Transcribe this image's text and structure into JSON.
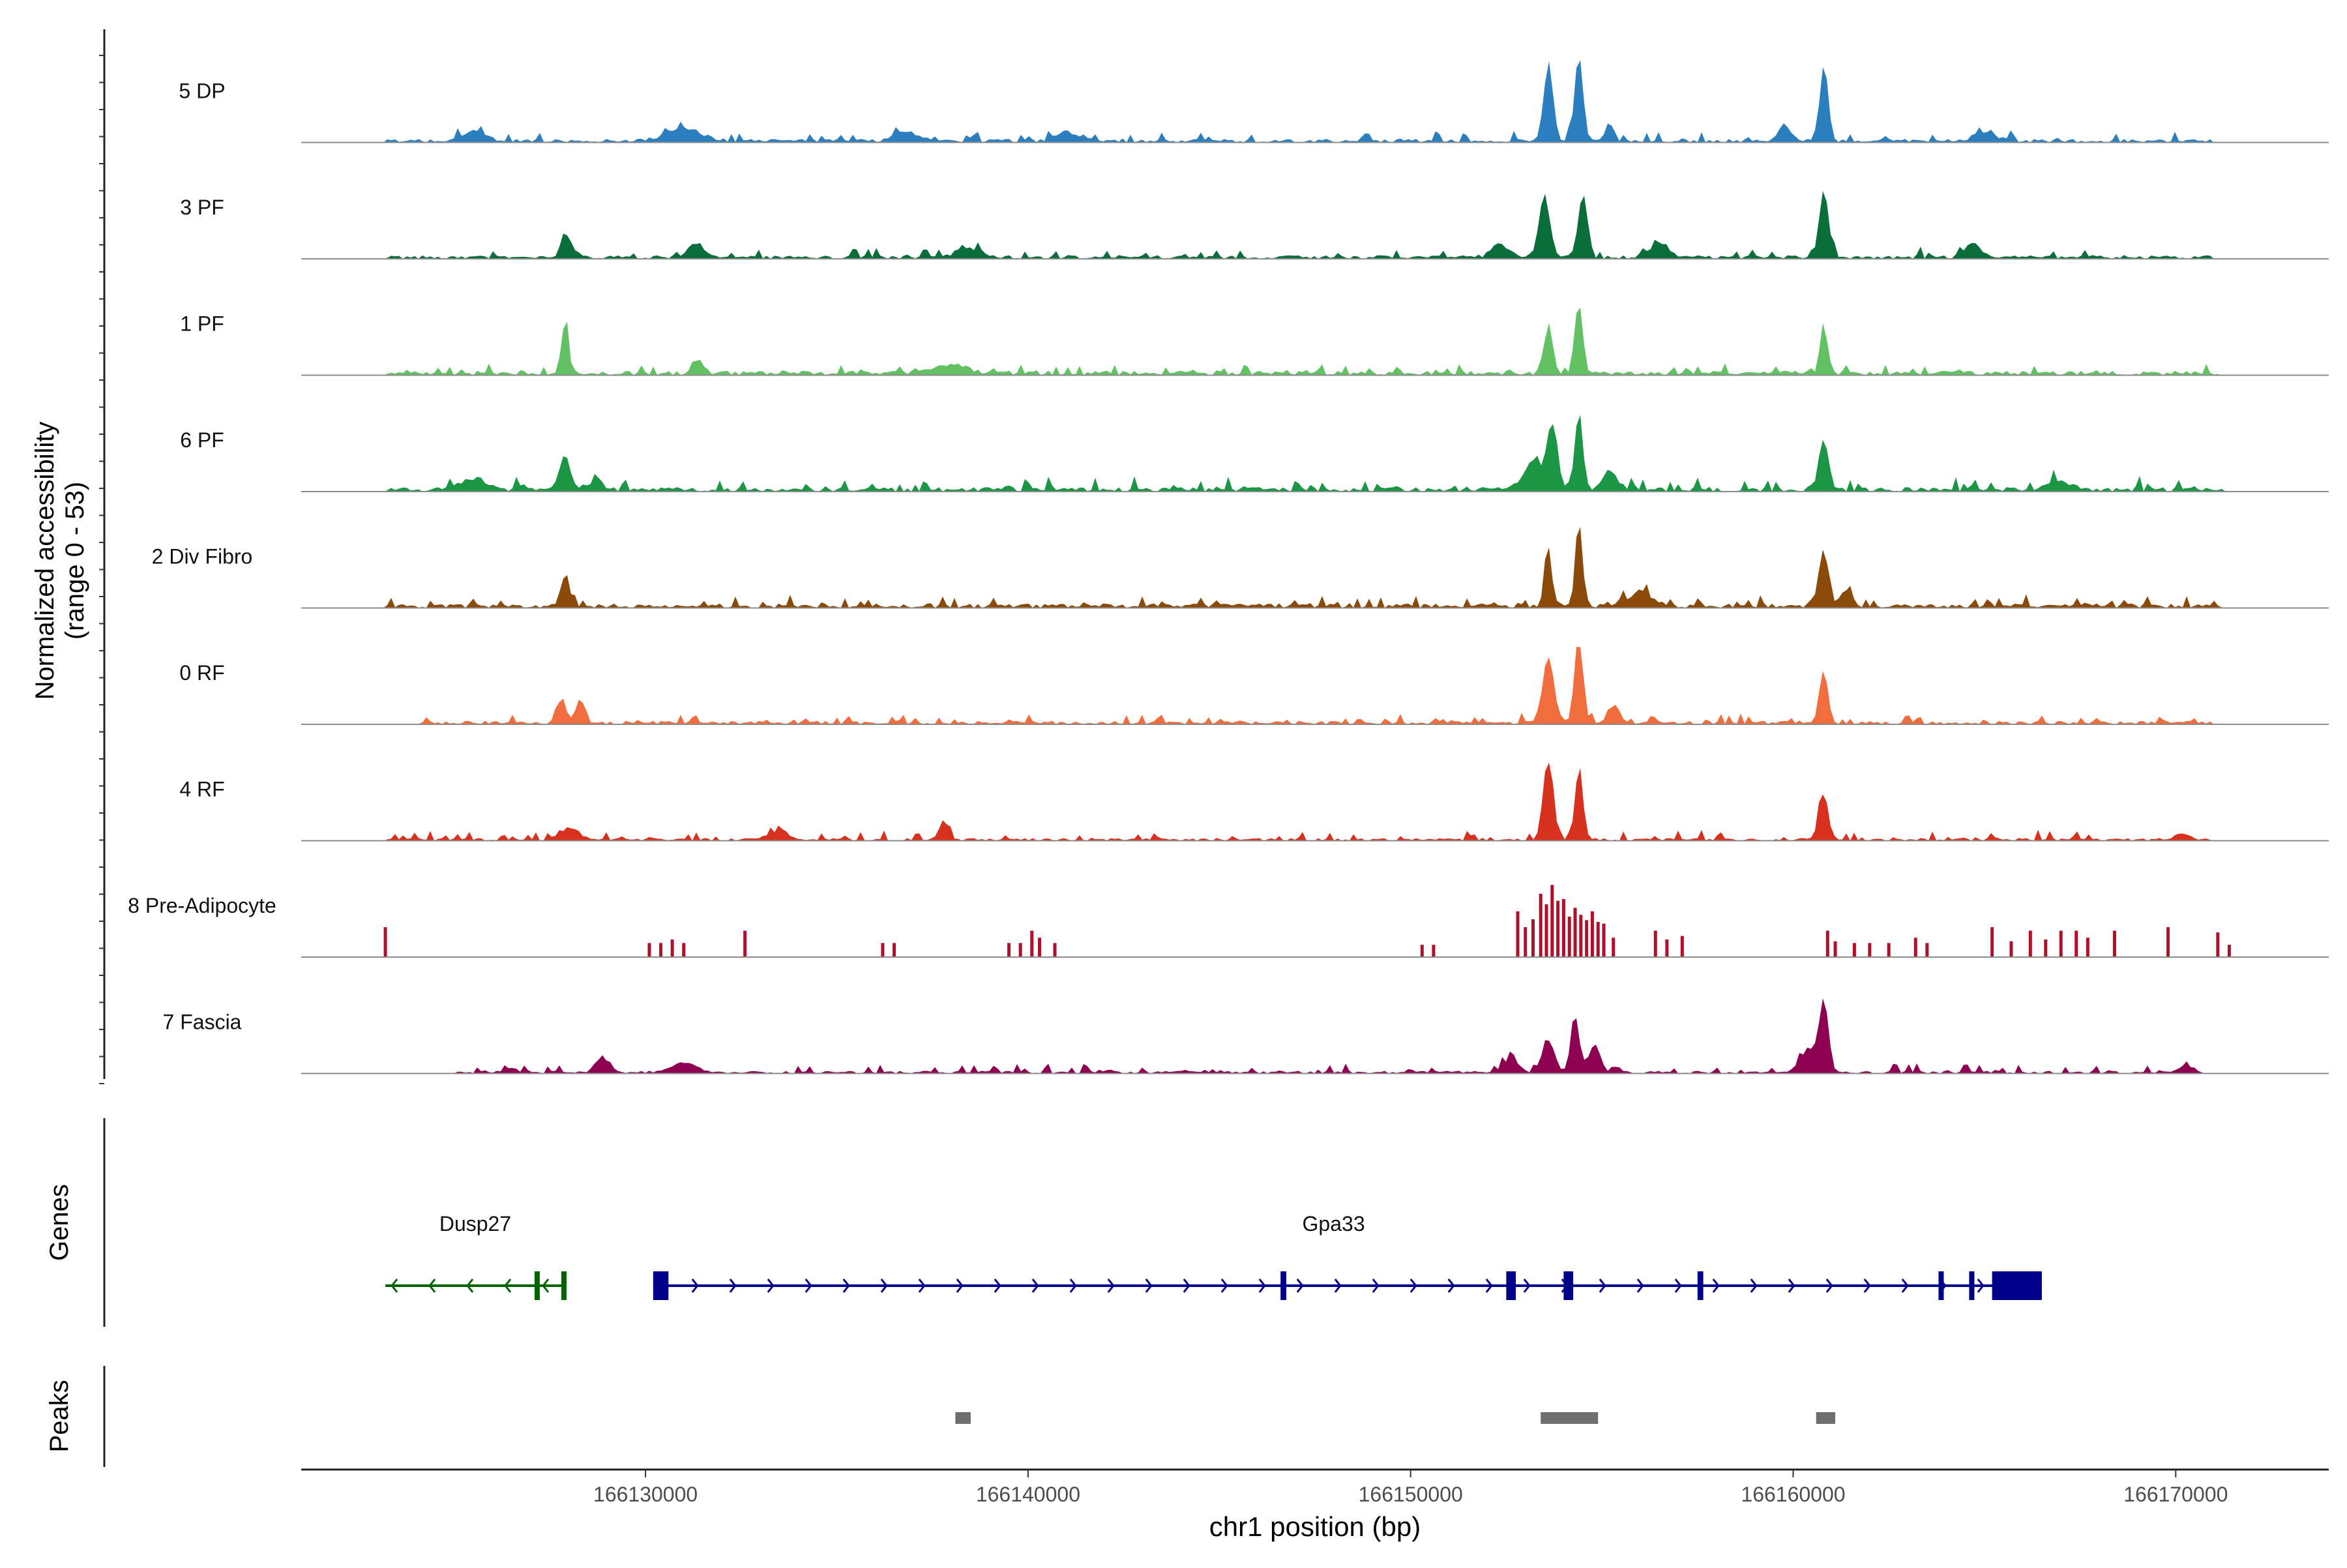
{
  "chart_data": {
    "type": "area",
    "title": "",
    "ylabel_lines": [
      "Normalized accessibility",
      "(range 0 - 53)"
    ],
    "xlabel": "chr1 position (bp)",
    "xlim": [
      166121000,
      166174000
    ],
    "x_ticks": [
      166130000,
      166140000,
      166150000,
      166160000,
      166170000
    ],
    "x_tick_labels": [
      "166130000",
      "166140000",
      "166150000",
      "166160000",
      "166170000"
    ],
    "genes_label": "Genes",
    "peaks_label": "Peaks",
    "tracks": [
      {
        "name": "5 DP",
        "color": "#2b7fbf",
        "bars": false,
        "baseline": 0.04,
        "noise_level": 0.1,
        "noise_start": 166123200,
        "noise_end": 166171000,
        "bumps": [
          [
            166125500,
            0.12,
            300
          ],
          [
            166131000,
            0.16,
            450
          ],
          [
            166136800,
            0.12,
            300
          ],
          [
            166141000,
            0.1,
            300
          ],
          [
            166153600,
            1.0,
            120
          ],
          [
            166154400,
            1.0,
            110
          ],
          [
            166155200,
            0.24,
            100
          ],
          [
            166160800,
            0.92,
            110
          ],
          [
            166159800,
            0.16,
            200
          ],
          [
            166165000,
            0.1,
            300
          ]
        ]
      },
      {
        "name": "3 PF",
        "color": "#0a6e3a",
        "bars": false,
        "baseline": 0.04,
        "noise_level": 0.1,
        "noise_start": 166123200,
        "noise_end": 166171000,
        "bumps": [
          [
            166127900,
            0.32,
            110
          ],
          [
            166131300,
            0.18,
            200
          ],
          [
            166138500,
            0.12,
            300
          ],
          [
            166152300,
            0.16,
            200
          ],
          [
            166153500,
            0.77,
            140
          ],
          [
            166154500,
            0.74,
            120
          ],
          [
            166156500,
            0.18,
            250
          ],
          [
            166160800,
            0.86,
            120
          ],
          [
            166164700,
            0.16,
            200
          ]
        ]
      },
      {
        "name": "1 PF",
        "color": "#62c263",
        "bars": false,
        "baseline": 0.05,
        "noise_level": 0.09,
        "noise_start": 166123200,
        "noise_end": 166171200,
        "bumps": [
          [
            166127900,
            0.63,
            90
          ],
          [
            166131400,
            0.16,
            120
          ],
          [
            166138000,
            0.1,
            400
          ],
          [
            166153600,
            0.55,
            120
          ],
          [
            166154400,
            0.9,
            100
          ],
          [
            166160800,
            0.57,
            100
          ]
        ]
      },
      {
        "name": "6 PF",
        "color": "#1a9645",
        "bars": false,
        "baseline": 0.05,
        "noise_level": 0.13,
        "noise_start": 166123200,
        "noise_end": 166171300,
        "bumps": [
          [
            166125500,
            0.14,
            300
          ],
          [
            166127900,
            0.42,
            140
          ],
          [
            166128700,
            0.18,
            120
          ],
          [
            166153200,
            0.34,
            250
          ],
          [
            166153700,
            0.82,
            130
          ],
          [
            166154400,
            1.0,
            100
          ],
          [
            166155200,
            0.22,
            200
          ],
          [
            166160800,
            0.66,
            120
          ],
          [
            166167000,
            0.1,
            300
          ]
        ]
      },
      {
        "name": "2 Div Fibro",
        "color": "#8b4a0a",
        "bars": false,
        "baseline": 0.05,
        "noise_level": 0.11,
        "noise_start": 166123200,
        "noise_end": 166171300,
        "bumps": [
          [
            166127900,
            0.39,
            110
          ],
          [
            166153600,
            0.63,
            100
          ],
          [
            166154400,
            1.1,
            90
          ],
          [
            166156000,
            0.18,
            300
          ],
          [
            166160800,
            0.67,
            130
          ],
          [
            166161400,
            0.2,
            150
          ]
        ]
      },
      {
        "name": "0 RF",
        "color": "#f26d3d",
        "bars": false,
        "baseline": 0.04,
        "noise_level": 0.09,
        "noise_start": 166124000,
        "noise_end": 166171000,
        "bumps": [
          [
            166127800,
            0.28,
            110
          ],
          [
            166128300,
            0.3,
            110
          ],
          [
            166153600,
            0.75,
            150
          ],
          [
            166154400,
            1.07,
            110
          ],
          [
            166155300,
            0.22,
            150
          ],
          [
            166160800,
            0.64,
            110
          ]
        ]
      },
      {
        "name": "4 RF",
        "color": "#d7301f",
        "bars": false,
        "baseline": 0.03,
        "noise_level": 0.1,
        "noise_start": 166123200,
        "noise_end": 166171000,
        "bumps": [
          [
            166128000,
            0.14,
            250
          ],
          [
            166133500,
            0.12,
            250
          ],
          [
            166137800,
            0.22,
            120
          ],
          [
            166153600,
            1.0,
            130
          ],
          [
            166154400,
            0.91,
            100
          ],
          [
            166160800,
            0.56,
            120
          ],
          [
            166170200,
            0.08,
            200
          ]
        ]
      },
      {
        "name": "8 Pre-Adipocyte",
        "color": "#b0102b",
        "bars": true,
        "baseline": 0.0,
        "noise_level": 0.0,
        "noise_start": 166123200,
        "noise_end": 166171500,
        "bumps": [
          [
            166123200,
            0.34,
            0
          ],
          [
            166130100,
            0.16,
            0
          ],
          [
            166130400,
            0.16,
            0
          ],
          [
            166130700,
            0.2,
            0
          ],
          [
            166131000,
            0.16,
            0
          ],
          [
            166132600,
            0.3,
            0
          ],
          [
            166136200,
            0.16,
            0
          ],
          [
            166136500,
            0.16,
            0
          ],
          [
            166139500,
            0.16,
            0
          ],
          [
            166139800,
            0.16,
            0
          ],
          [
            166140100,
            0.3,
            0
          ],
          [
            166140300,
            0.22,
            0
          ],
          [
            166140700,
            0.16,
            0
          ],
          [
            166150300,
            0.14,
            0
          ],
          [
            166150600,
            0.14,
            0
          ],
          [
            166152800,
            0.52,
            0
          ],
          [
            166153000,
            0.34,
            0
          ],
          [
            166153200,
            0.43,
            0
          ],
          [
            166153400,
            0.72,
            0
          ],
          [
            166153550,
            0.6,
            0
          ],
          [
            166153700,
            0.82,
            0
          ],
          [
            166153850,
            0.64,
            0
          ],
          [
            166154000,
            0.66,
            0
          ],
          [
            166154150,
            0.46,
            0
          ],
          [
            166154300,
            0.56,
            0
          ],
          [
            166154450,
            0.48,
            0
          ],
          [
            166154600,
            0.42,
            0
          ],
          [
            166154750,
            0.52,
            0
          ],
          [
            166154900,
            0.4,
            0
          ],
          [
            166155050,
            0.38,
            0
          ],
          [
            166155300,
            0.22,
            0
          ],
          [
            166156400,
            0.3,
            0
          ],
          [
            166156700,
            0.2,
            0
          ],
          [
            166157100,
            0.24,
            0
          ],
          [
            166160900,
            0.3,
            0
          ],
          [
            166161100,
            0.18,
            0
          ],
          [
            166161600,
            0.16,
            0
          ],
          [
            166162000,
            0.16,
            0
          ],
          [
            166162500,
            0.16,
            0
          ],
          [
            166163200,
            0.22,
            0
          ],
          [
            166163500,
            0.16,
            0
          ],
          [
            166165200,
            0.34,
            0
          ],
          [
            166165700,
            0.18,
            0
          ],
          [
            166166200,
            0.3,
            0
          ],
          [
            166166600,
            0.2,
            0
          ],
          [
            166167000,
            0.3,
            0
          ],
          [
            166167400,
            0.3,
            0
          ],
          [
            166167700,
            0.22,
            0
          ],
          [
            166168400,
            0.3,
            0
          ],
          [
            166169800,
            0.34,
            0
          ],
          [
            166171100,
            0.28,
            0
          ],
          [
            166171400,
            0.14,
            0
          ]
        ]
      },
      {
        "name": "7 Fascia",
        "color": "#8e0152",
        "bars": false,
        "baseline": 0.03,
        "noise_level": 0.1,
        "noise_start": 166125000,
        "noise_end": 166170500,
        "bumps": [
          [
            166128900,
            0.17,
            200
          ],
          [
            166131000,
            0.12,
            300
          ],
          [
            166152600,
            0.16,
            200
          ],
          [
            166153600,
            0.43,
            150
          ],
          [
            166154300,
            0.72,
            110
          ],
          [
            166154800,
            0.35,
            150
          ],
          [
            166160800,
            0.86,
            120
          ],
          [
            166160400,
            0.3,
            200
          ],
          [
            166170300,
            0.08,
            200
          ]
        ]
      }
    ],
    "genes": [
      {
        "name": "Dusp27",
        "color": "#006400",
        "strand": "-",
        "start": 166123200,
        "end": 166127900,
        "exons": [
          [
            166127100,
            166127200
          ],
          [
            166127800,
            166127900
          ]
        ]
      },
      {
        "name": "Gpa33",
        "color": "#00008b",
        "strand": "+",
        "start": 166130200,
        "end": 166166500,
        "exons": [
          [
            166130200,
            166130600
          ],
          [
            166146600,
            166146750
          ],
          [
            166152500,
            166152750
          ],
          [
            166154000,
            166154250
          ],
          [
            166157500,
            166157650
          ],
          [
            166163800,
            166163900
          ],
          [
            166164600,
            166164700
          ],
          [
            166165200,
            166166500
          ]
        ]
      }
    ],
    "peaks": [
      [
        166138100,
        166138500
      ],
      [
        166153400,
        166154900
      ],
      [
        166160600,
        166161100
      ]
    ]
  }
}
